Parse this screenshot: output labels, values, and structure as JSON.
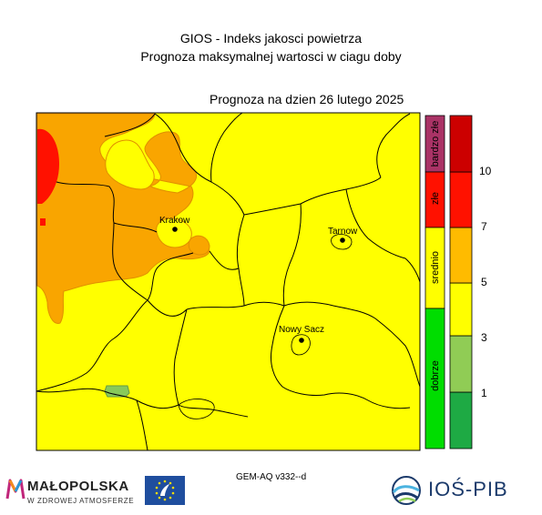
{
  "title_line1": "GIOS - Indeks jakosci powietrza",
  "title_line2": "Prognoza maksymalnej wartosci w ciagu doby",
  "forecast_label": "Prognoza na dzien  26 lutego 2025",
  "cities": [
    {
      "name": "Krakow"
    },
    {
      "name": "Tarnow"
    },
    {
      "name": "Nowy Sacz"
    }
  ],
  "category_scale": [
    {
      "label": "dobrze",
      "color": "#00dd00"
    },
    {
      "label": "srednio",
      "color": "#ffff00"
    },
    {
      "label": "złe",
      "color": "#ff0000"
    },
    {
      "label": "bardzo złe",
      "color": "#aa3366"
    }
  ],
  "value_scale": {
    "colors": [
      "#1eaa44",
      "#90cc55",
      "#ffff00",
      "#ffbb00",
      "#ff1100",
      "#cc0000"
    ],
    "tick_labels": [
      "1",
      "3",
      "5",
      "7",
      "10"
    ]
  },
  "map_colors": {
    "base": "#ffff00",
    "orange": "#f9a500",
    "red": "#ff1100",
    "green": "#88c95a",
    "border": "#000000"
  },
  "model_label": "GEM-AQ v332--d",
  "logos": {
    "malopolska_name": "MAŁOPOLSKA",
    "malopolska_sub": "W ZDROWEJ ATMOSFERZE",
    "ios_name": "IOŚ-PIB"
  }
}
